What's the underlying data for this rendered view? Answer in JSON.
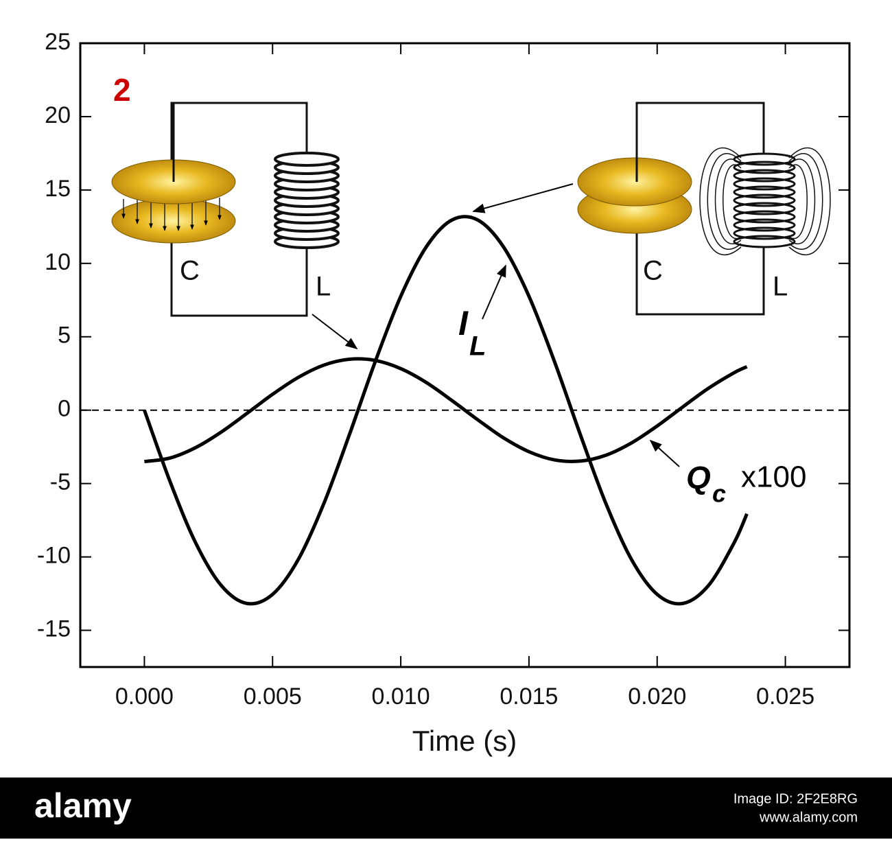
{
  "chart_data": {
    "type": "line",
    "title": "2",
    "x_label": "Time (s)",
    "x": [
      0,
      0.001,
      0.002,
      0.003,
      0.004,
      0.005,
      0.006,
      0.007,
      0.008,
      0.009,
      0.01,
      0.011,
      0.012,
      0.013,
      0.014,
      0.015,
      0.016,
      0.017,
      0.018,
      0.019,
      0.02,
      0.021,
      0.022,
      0.023,
      0.0235
    ],
    "series": [
      {
        "color": "#000000",
        "values": [
          0,
          -4.86,
          -9.04,
          -11.95,
          -13.17,
          -12.55,
          -10.18,
          -6.36,
          -1.65,
          3.29,
          7.76,
          11.14,
          12.96,
          12.96,
          11.14,
          7.76,
          3.29,
          -1.65,
          -6.36,
          -10.18,
          -12.55,
          -13.17,
          -11.95,
          -9.04,
          -7.06
        ]
      },
      {
        "color": "#000000",
        "values": [
          -3.5,
          -3.26,
          -2.55,
          -1.49,
          -0.22,
          1.08,
          2.23,
          3.07,
          3.47,
          3.39,
          2.83,
          1.88,
          0.65,
          -0.65,
          -1.88,
          -2.83,
          -3.39,
          -3.47,
          -3.07,
          -2.23,
          -1.08,
          0.22,
          1.49,
          2.55,
          2.96
        ]
      }
    ],
    "xlim": [
      -0.0025,
      0.0275
    ],
    "ylim": [
      -17.5,
      25
    ],
    "xticks": [
      {
        "value": 0,
        "label": "0.000"
      },
      {
        "value": 0.005,
        "label": "0.005"
      },
      {
        "value": 0.01,
        "label": "0.010"
      },
      {
        "value": 0.015,
        "label": "0.015"
      },
      {
        "value": 0.02,
        "label": "0.020"
      },
      {
        "value": 0.025,
        "label": "0.025"
      }
    ],
    "yticks": [
      -15,
      -10,
      -5,
      0,
      5,
      10,
      15,
      20,
      25
    ],
    "hline": 0,
    "annotations": [
      {
        "text": "I",
        "sub": "L"
      },
      {
        "text": "Q",
        "sub": "c",
        "suffix": "x100"
      }
    ],
    "circuit_labels": [
      "C",
      "L",
      "C",
      "L"
    ]
  },
  "watermark": {
    "brand": "alamy",
    "image_id": "Image ID: 2F2E8RG",
    "url": "www.alamy.com"
  }
}
